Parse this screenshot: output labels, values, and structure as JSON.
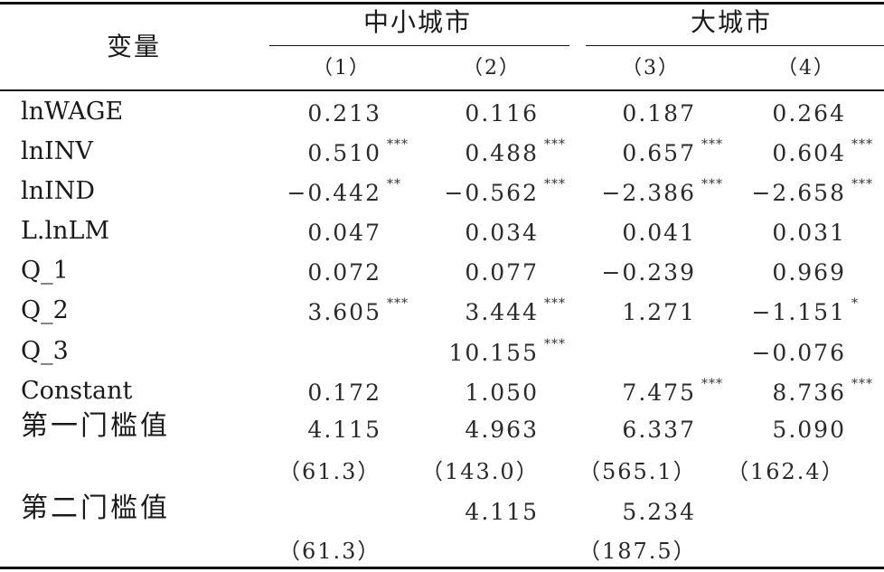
{
  "header": {
    "var_label": "变量",
    "groups": [
      "中小城市",
      "大城市"
    ],
    "columns": [
      "（1）",
      "（2）",
      "（3）",
      "（4）"
    ]
  },
  "rows": [
    {
      "label": "lnWAGE",
      "cells": [
        {
          "v": "0.213",
          "s": ""
        },
        {
          "v": "0.116",
          "s": ""
        },
        {
          "v": "0.187",
          "s": ""
        },
        {
          "v": "0.264",
          "s": ""
        }
      ]
    },
    {
      "label": "lnINV",
      "cells": [
        {
          "v": "0.510",
          "s": "***"
        },
        {
          "v": "0.488",
          "s": "***"
        },
        {
          "v": "0.657",
          "s": "***"
        },
        {
          "v": "0.604",
          "s": "***"
        }
      ]
    },
    {
      "label": "lnIND",
      "cells": [
        {
          "v": "−0.442",
          "s": "**"
        },
        {
          "v": "−0.562",
          "s": "***"
        },
        {
          "v": "−2.386",
          "s": "***"
        },
        {
          "v": "−2.658",
          "s": "***"
        }
      ]
    },
    {
      "label": "L.lnLM",
      "cells": [
        {
          "v": "0.047",
          "s": ""
        },
        {
          "v": "0.034",
          "s": ""
        },
        {
          "v": "0.041",
          "s": ""
        },
        {
          "v": "0.031",
          "s": ""
        }
      ]
    },
    {
      "label": "Q_1",
      "cells": [
        {
          "v": "0.072",
          "s": ""
        },
        {
          "v": "0.077",
          "s": ""
        },
        {
          "v": "−0.239",
          "s": ""
        },
        {
          "v": "0.969",
          "s": ""
        }
      ]
    },
    {
      "label": "Q_2",
      "cells": [
        {
          "v": "3.605",
          "s": "***"
        },
        {
          "v": "3.444",
          "s": "***"
        },
        {
          "v": "1.271",
          "s": ""
        },
        {
          "v": "−1.151",
          "s": "*"
        }
      ]
    },
    {
      "label": "Q_3",
      "cells": [
        {
          "v": "",
          "s": ""
        },
        {
          "v": "10.155",
          "s": "***"
        },
        {
          "v": "",
          "s": ""
        },
        {
          "v": "−0.076",
          "s": ""
        }
      ]
    },
    {
      "label": "Constant",
      "cells": [
        {
          "v": "0.172",
          "s": ""
        },
        {
          "v": "1.050",
          "s": ""
        },
        {
          "v": "7.475",
          "s": "***"
        },
        {
          "v": "8.736",
          "s": "***"
        }
      ]
    },
    {
      "label": "第一门槛值",
      "cells": [
        {
          "v": "4.115",
          "s": ""
        },
        {
          "v": "4.963",
          "s": ""
        },
        {
          "v": "6.337",
          "s": ""
        },
        {
          "v": "5.090",
          "s": ""
        }
      ]
    },
    {
      "label": "",
      "cells": [
        {
          "v": "（61.3）",
          "s": ""
        },
        {
          "v": "（143.0）",
          "s": ""
        },
        {
          "v": "（565.1）",
          "s": ""
        },
        {
          "v": "（162.4）",
          "s": ""
        }
      ]
    },
    {
      "label": "第二门槛值",
      "cells": [
        {
          "v": "",
          "s": ""
        },
        {
          "v": "4.115",
          "s": ""
        },
        {
          "v": "5.234",
          "s": ""
        },
        {
          "v": "",
          "s": ""
        }
      ]
    },
    {
      "label": "",
      "cells": [
        {
          "v": "（61.3）",
          "s": ""
        },
        {
          "v": "",
          "s": ""
        },
        {
          "v": "（187.5）",
          "s": ""
        },
        {
          "v": "",
          "s": ""
        }
      ]
    }
  ]
}
